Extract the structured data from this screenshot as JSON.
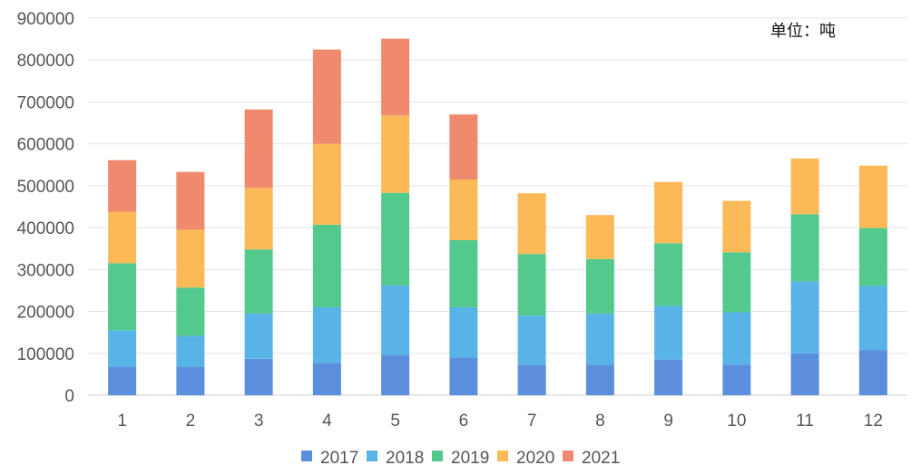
{
  "chart_data": {
    "type": "bar",
    "stacked": true,
    "unit_label": "单位：吨",
    "categories": [
      "1",
      "2",
      "3",
      "4",
      "5",
      "6",
      "7",
      "8",
      "9",
      "10",
      "11",
      "12"
    ],
    "series": [
      {
        "name": "2017",
        "color": "#5b8fde",
        "values": [
          68000,
          68000,
          87000,
          77000,
          97000,
          90000,
          73000,
          73000,
          85000,
          73000,
          100000,
          108000
        ]
      },
      {
        "name": "2018",
        "color": "#58b4e6",
        "values": [
          87000,
          74000,
          108000,
          133000,
          165000,
          120000,
          117000,
          122000,
          128000,
          125000,
          172000,
          153000
        ]
      },
      {
        "name": "2019",
        "color": "#53c98e",
        "values": [
          160000,
          115000,
          153000,
          197000,
          221000,
          160000,
          147000,
          130000,
          150000,
          143000,
          160000,
          138000
        ]
      },
      {
        "name": "2020",
        "color": "#fbb957",
        "values": [
          123000,
          138000,
          147000,
          193000,
          185000,
          145000,
          145000,
          105000,
          146000,
          123000,
          133000,
          149000
        ]
      },
      {
        "name": "2021",
        "color": "#ef8a6e",
        "values": [
          123000,
          138000,
          187000,
          225000,
          183000,
          155000,
          0,
          0,
          0,
          0,
          0,
          0
        ]
      }
    ],
    "ylim": [
      0,
      900000
    ],
    "yticks": [
      "0",
      "100000",
      "200000",
      "300000",
      "400000",
      "500000",
      "600000",
      "700000",
      "800000",
      "900000"
    ],
    "legend_position": "bottom",
    "grid": true,
    "title": "",
    "xlabel": "",
    "ylabel": ""
  }
}
